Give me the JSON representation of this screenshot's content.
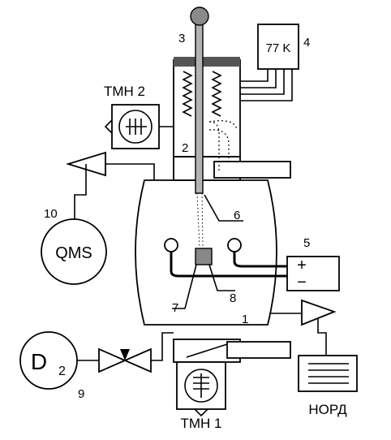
{
  "labels": {
    "chamber_num": "1",
    "rod_guide_num": "2",
    "manipulator_num": "3",
    "cryostat_num": "4",
    "power_num": "5",
    "beam_num": "6",
    "sample_num": "7",
    "holder_num": "8",
    "gas_num": "9",
    "qms_num": "10",
    "cryostat_temp": "77 K",
    "tmn1": "ТМН 1",
    "tmn2": "ТМН 2",
    "qms": "QMS",
    "gas_main": "D",
    "gas_sub": "2",
    "nord": "НОРД",
    "plus": "+",
    "minus": "−"
  }
}
